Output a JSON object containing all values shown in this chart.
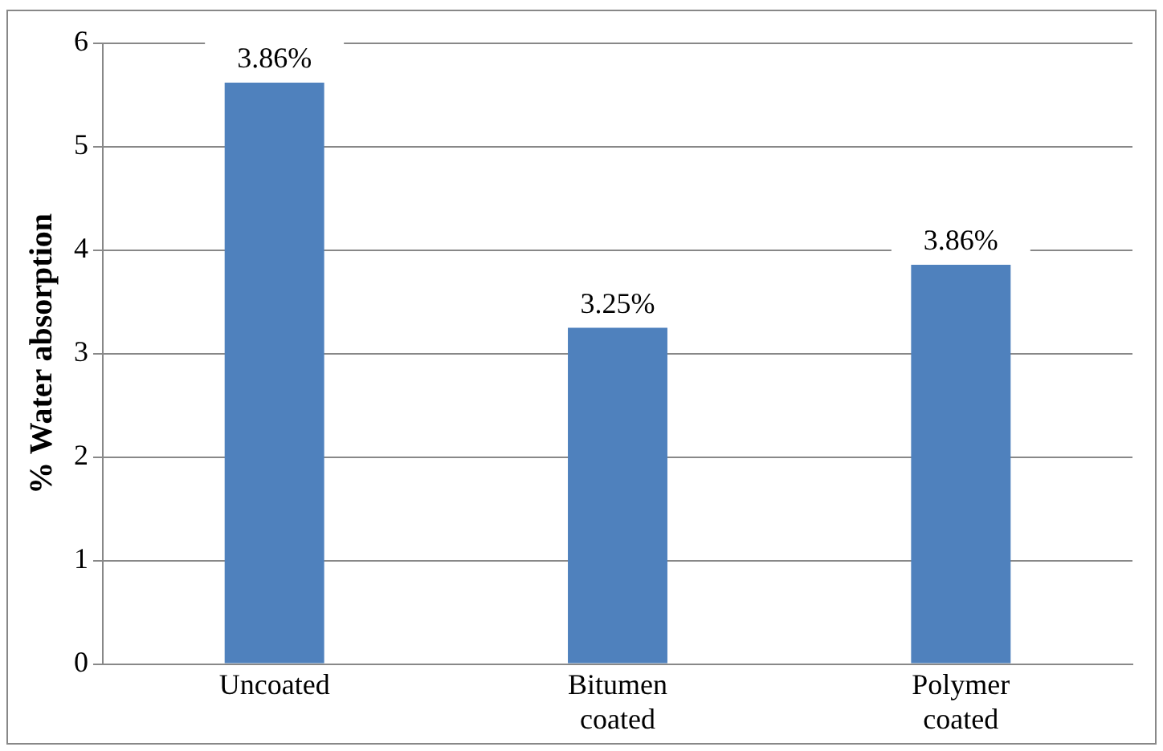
{
  "chart_data": {
    "type": "bar",
    "ylabel": "% Water absorption",
    "categories": [
      "Uncoated",
      "Bitumen coated",
      "Polymer coated"
    ],
    "values": [
      5.62,
      3.25,
      3.86
    ],
    "color": "#4f81bd",
    "annotations": [
      {
        "text": "3.86%",
        "x": "Uncoated",
        "y": 5.62
      },
      {
        "text": "3.25%",
        "x": "Bitumen coated",
        "y": 3.25
      },
      {
        "text": "3.86%",
        "x": "Polymer coated",
        "y": 3.86
      }
    ],
    "ylim": [
      0,
      6
    ],
    "yticks": [
      0,
      1,
      2,
      3,
      4,
      5,
      6
    ],
    "grid": "y",
    "legend": false
  }
}
